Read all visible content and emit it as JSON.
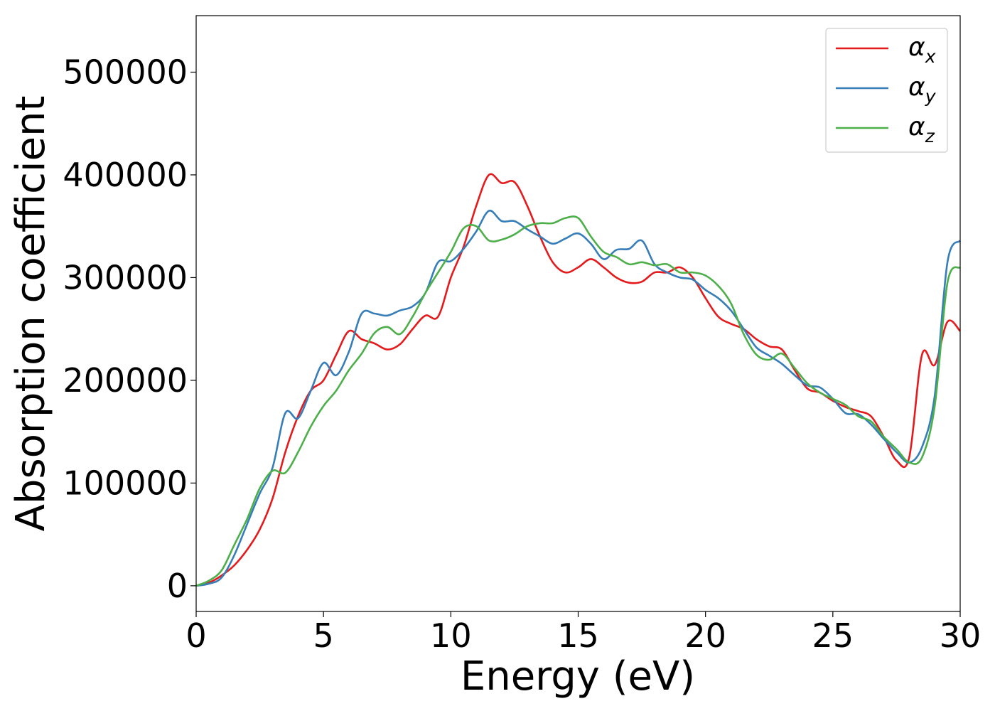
{
  "chart_data": {
    "type": "line",
    "xlabel": "Energy (eV)",
    "ylabel": "Absorption coefficient",
    "xlim": [
      0,
      30
    ],
    "ylim": [
      -25000,
      555000
    ],
    "xticks": [
      "0",
      "5",
      "10",
      "15",
      "20",
      "25",
      "30"
    ],
    "yticks": [
      "0",
      "100000",
      "200000",
      "300000",
      "400000",
      "500000"
    ],
    "grid": false,
    "legend_position": "top-right",
    "series": [
      {
        "name": "α_x",
        "base": "α",
        "sub": "x",
        "color": "#e41a1c",
        "x": [
          0,
          0.5,
          1,
          1.5,
          2,
          2.5,
          3,
          3.5,
          4,
          4.5,
          5,
          5.5,
          6,
          6.5,
          7,
          7.5,
          8,
          8.5,
          9,
          9.5,
          10,
          10.5,
          11,
          11.5,
          12,
          12.5,
          13,
          13.5,
          14,
          14.5,
          15,
          15.5,
          16,
          16.5,
          17,
          17.5,
          18,
          18.5,
          19,
          19.5,
          20,
          20.5,
          21,
          21.5,
          22,
          22.5,
          23,
          23.5,
          24,
          24.5,
          25,
          25.5,
          26,
          26.5,
          27,
          27.5,
          28,
          28.5,
          29,
          29.5,
          30
        ],
        "y": [
          0,
          3000,
          10000,
          20000,
          35000,
          55000,
          85000,
          130000,
          165000,
          190000,
          200000,
          225000,
          248000,
          240000,
          236000,
          230000,
          235000,
          250000,
          263000,
          262000,
          300000,
          330000,
          370000,
          400000,
          392000,
          393000,
          370000,
          340000,
          315000,
          305000,
          310000,
          318000,
          310000,
          300000,
          295000,
          296000,
          305000,
          305000,
          310000,
          300000,
          280000,
          262000,
          255000,
          250000,
          240000,
          233000,
          230000,
          210000,
          192000,
          188000,
          180000,
          174000,
          170000,
          165000,
          145000,
          122000,
          125000,
          225000,
          215000,
          257000,
          248000
        ]
      },
      {
        "name": "α_y",
        "base": "α",
        "sub": "y",
        "color": "#377eb8",
        "x": [
          0,
          0.5,
          1,
          1.5,
          2,
          2.5,
          3,
          3.5,
          4,
          4.5,
          5,
          5.5,
          6,
          6.5,
          7,
          7.5,
          8,
          8.5,
          9,
          9.5,
          10,
          10.5,
          11,
          11.5,
          12,
          12.5,
          13,
          13.5,
          14,
          14.5,
          15,
          15.5,
          16,
          16.5,
          17,
          17.5,
          18,
          18.5,
          19,
          19.5,
          20,
          20.5,
          21,
          21.5,
          22,
          22.5,
          23,
          23.5,
          24,
          24.5,
          25,
          25.5,
          26,
          26.5,
          27,
          27.5,
          28,
          28.5,
          29,
          29.5,
          30
        ],
        "y": [
          0,
          2000,
          8000,
          30000,
          60000,
          90000,
          115000,
          168000,
          163000,
          190000,
          217000,
          205000,
          228000,
          265000,
          265000,
          263000,
          268000,
          272000,
          285000,
          315000,
          316000,
          328000,
          345000,
          365000,
          355000,
          355000,
          347000,
          340000,
          333000,
          338000,
          343000,
          333000,
          318000,
          327000,
          328000,
          336000,
          313000,
          305000,
          300000,
          298000,
          288000,
          280000,
          268000,
          250000,
          232000,
          224000,
          216000,
          205000,
          195000,
          193000,
          182000,
          168000,
          167000,
          157000,
          143000,
          130000,
          120000,
          135000,
          185000,
          315000,
          336000
        ]
      },
      {
        "name": "α_z",
        "base": "α",
        "sub": "z",
        "color": "#4daf4a",
        "x": [
          0,
          0.5,
          1,
          1.5,
          2,
          2.5,
          3,
          3.5,
          4,
          4.5,
          5,
          5.5,
          6,
          6.5,
          7,
          7.5,
          8,
          8.5,
          9,
          9.5,
          10,
          10.5,
          11,
          11.5,
          12,
          12.5,
          13,
          13.5,
          14,
          14.5,
          15,
          15.5,
          16,
          16.5,
          17,
          17.5,
          18,
          18.5,
          19,
          19.5,
          20,
          20.5,
          21,
          21.5,
          22,
          22.5,
          23,
          23.5,
          24,
          24.5,
          25,
          25.5,
          26,
          26.5,
          27,
          27.5,
          28,
          28.5,
          29,
          29.5,
          30
        ],
        "y": [
          0,
          5000,
          15000,
          40000,
          65000,
          95000,
          112000,
          110000,
          130000,
          155000,
          175000,
          190000,
          210000,
          226000,
          246000,
          252000,
          245000,
          262000,
          285000,
          305000,
          325000,
          348000,
          350000,
          336000,
          337000,
          342000,
          350000,
          353000,
          353000,
          358000,
          358000,
          340000,
          325000,
          320000,
          313000,
          315000,
          312000,
          313000,
          305000,
          305000,
          302000,
          292000,
          275000,
          245000,
          225000,
          220000,
          226000,
          212000,
          197000,
          188000,
          182000,
          176000,
          165000,
          160000,
          145000,
          133000,
          120000,
          125000,
          175000,
          295000,
          310000
        ]
      }
    ]
  }
}
